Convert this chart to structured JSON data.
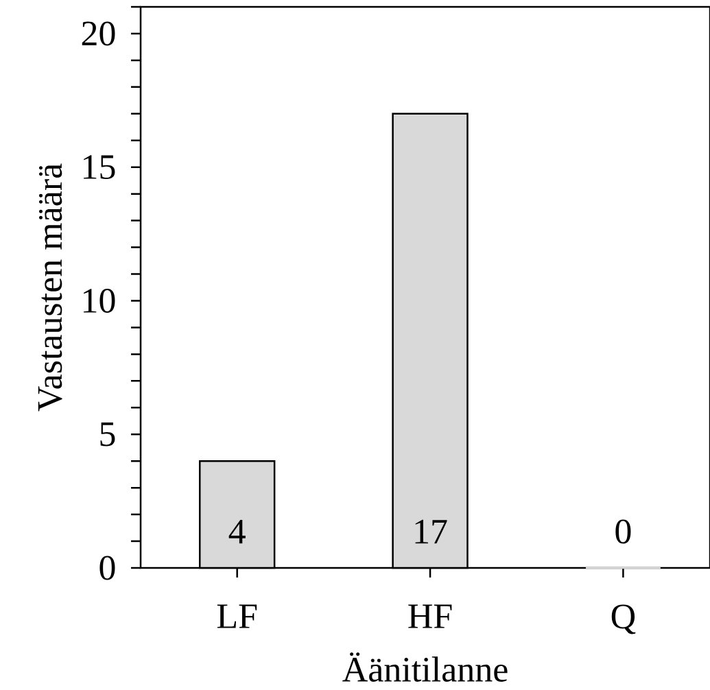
{
  "chart_data": {
    "type": "bar",
    "xlabel": "Äänitilanne",
    "ylabel": "Vastausten määrä",
    "categories": [
      "LF",
      "HF",
      "Q"
    ],
    "values": [
      4,
      17,
      0
    ],
    "color": "#d9d9d9",
    "ylim": [
      0,
      21
    ],
    "yticks": [
      0,
      {
        "value": 1,
        "label": null
      },
      {
        "value": 2,
        "label": null
      },
      {
        "value": 3,
        "label": null
      },
      {
        "value": 4,
        "label": null
      },
      5,
      {
        "value": 6,
        "label": null
      },
      {
        "value": 7,
        "label": null
      },
      {
        "value": 8,
        "label": null
      },
      {
        "value": 9,
        "label": null
      },
      10,
      {
        "value": 11,
        "label": null
      },
      {
        "value": 12,
        "label": null
      },
      {
        "value": 13,
        "label": null
      },
      {
        "value": 14,
        "label": null
      },
      15,
      {
        "value": 16,
        "label": null
      },
      {
        "value": 17,
        "label": null
      },
      {
        "value": 18,
        "label": null
      },
      {
        "value": 19,
        "label": null
      },
      20,
      {
        "value": 21,
        "label": null
      }
    ],
    "data_labels": true
  }
}
